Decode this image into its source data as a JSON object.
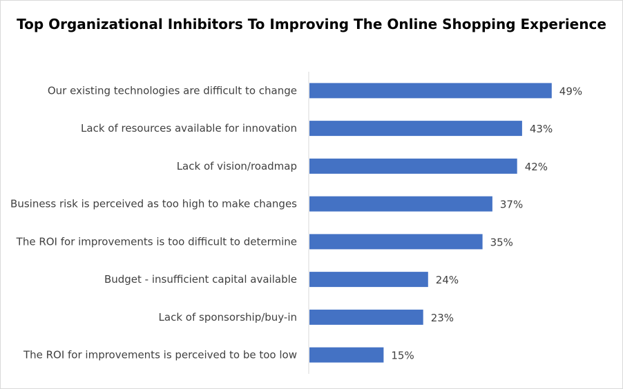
{
  "chart_data": {
    "type": "bar",
    "orientation": "horizontal",
    "title": "Top Organizational Inhibitors To Improving The Online Shopping Experience",
    "categories": [
      "Our existing technologies are difficult to change",
      "Lack of resources available for innovation",
      "Lack of vision/roadmap",
      "Business risk is perceived as too high to make changes",
      "The ROI for improvements is too difficult to determine",
      "Budget - insufficient capital available",
      "Lack of sponsorship/buy-in",
      "The ROI for improvements is perceived to be too low"
    ],
    "values": [
      49,
      43,
      42,
      37,
      35,
      24,
      23,
      15
    ],
    "value_labels": [
      "49%",
      "43%",
      "42%",
      "37%",
      "35%",
      "24%",
      "23%",
      "15%"
    ],
    "xlim": [
      0,
      55
    ],
    "grid": false,
    "legend": "none",
    "bar_color": "#4472c4",
    "axis_color": "#d9d9d9",
    "label_color": "#404040"
  }
}
